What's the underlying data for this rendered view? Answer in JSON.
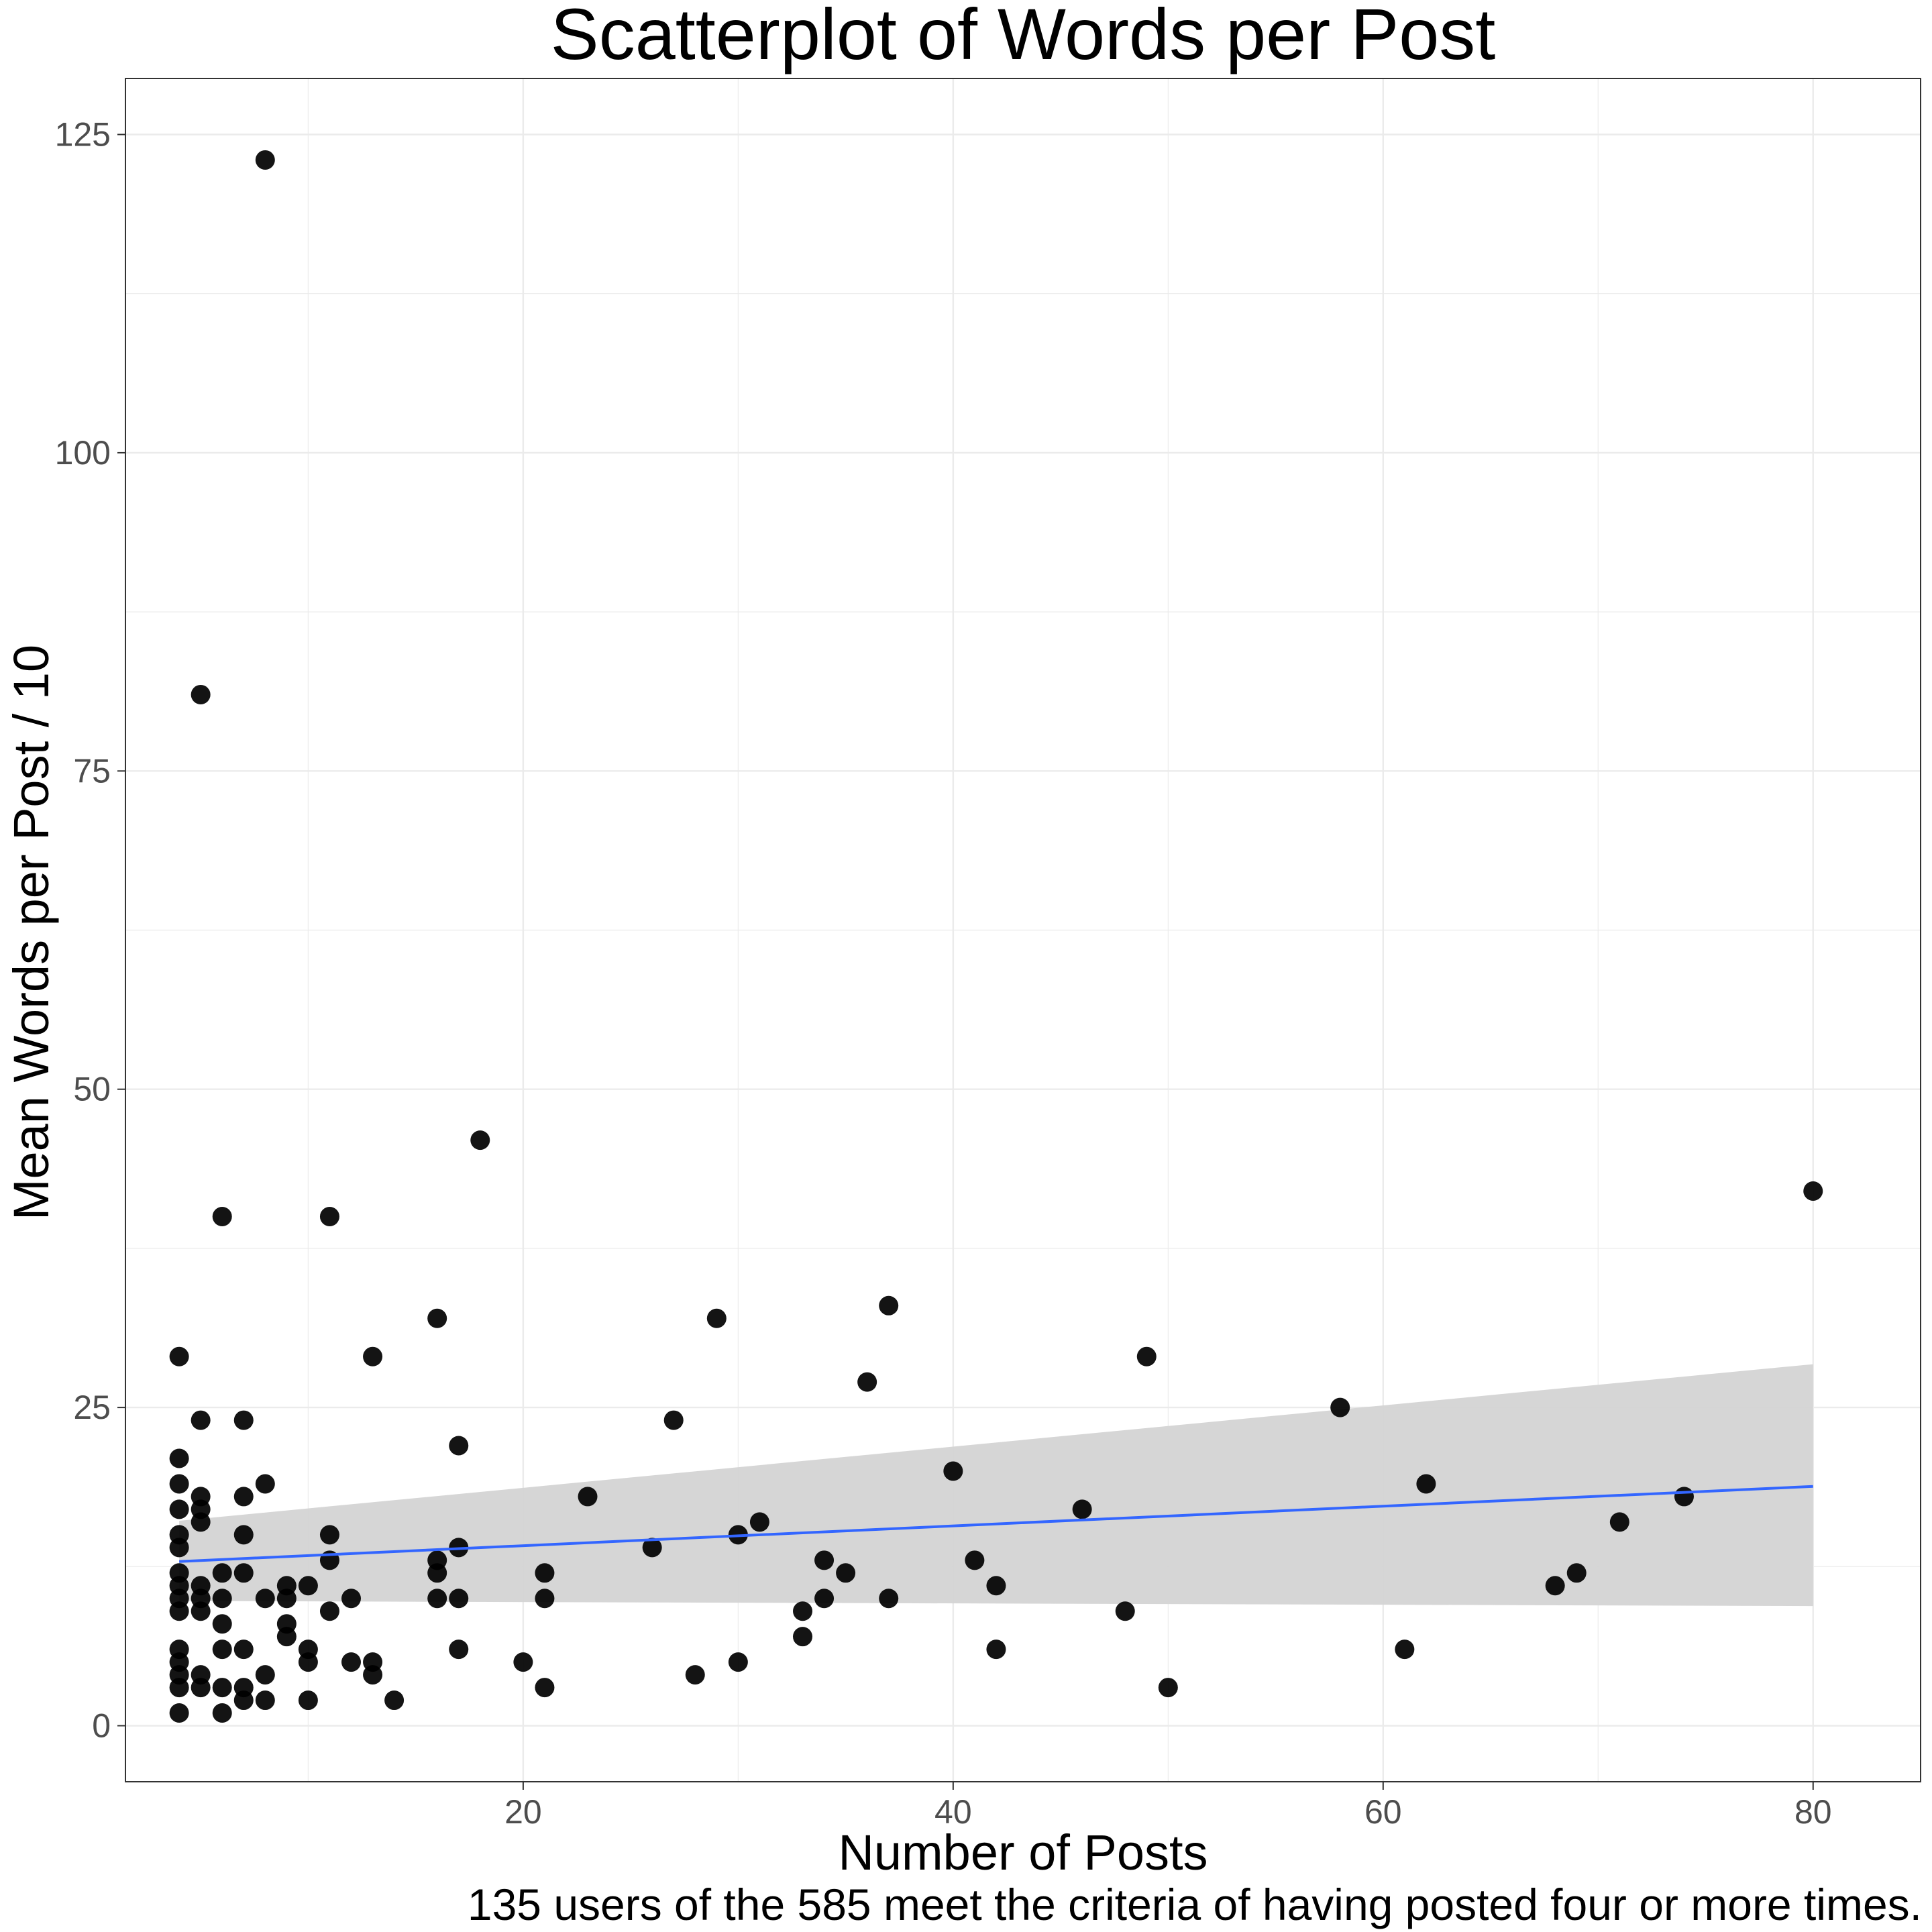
{
  "chart_data": {
    "type": "scatter",
    "title": "Scatterplot of Words per Post",
    "xlabel": "Number of Posts",
    "ylabel": "Mean Words per Post / 10",
    "caption": "135 users of the 585 meet the criteria of having posted four or more times.",
    "xlim": [
      1.5,
      85
    ],
    "ylim": [
      -4.4,
      129.4
    ],
    "xticks": [
      20,
      40,
      60,
      80
    ],
    "yticks": [
      0,
      25,
      50,
      75,
      100,
      125
    ],
    "grid": true,
    "legend": "none",
    "colors": {
      "points": "#000000",
      "trend_line": "#3366FF",
      "confidence_band": "#D4D4D4",
      "grid": "#EBEBEB",
      "panel_border": "#333333"
    },
    "points": [
      [
        4,
        1
      ],
      [
        4,
        3
      ],
      [
        4,
        4
      ],
      [
        4,
        5
      ],
      [
        4,
        6
      ],
      [
        4,
        9
      ],
      [
        4,
        10
      ],
      [
        4,
        11
      ],
      [
        4,
        12
      ],
      [
        4,
        14
      ],
      [
        4,
        15
      ],
      [
        4,
        17
      ],
      [
        4,
        19
      ],
      [
        4,
        21
      ],
      [
        4,
        29
      ],
      [
        5,
        3
      ],
      [
        5,
        4
      ],
      [
        5,
        9
      ],
      [
        5,
        10
      ],
      [
        5,
        11
      ],
      [
        5,
        16
      ],
      [
        5,
        17
      ],
      [
        5,
        18
      ],
      [
        5,
        24
      ],
      [
        5,
        81
      ],
      [
        6,
        1
      ],
      [
        6,
        3
      ],
      [
        6,
        6
      ],
      [
        6,
        8
      ],
      [
        6,
        10
      ],
      [
        6,
        12
      ],
      [
        6,
        40
      ],
      [
        7,
        2
      ],
      [
        7,
        3
      ],
      [
        7,
        6
      ],
      [
        7,
        12
      ],
      [
        7,
        15
      ],
      [
        7,
        18
      ],
      [
        7,
        24
      ],
      [
        8,
        2
      ],
      [
        8,
        4
      ],
      [
        8,
        10
      ],
      [
        8,
        19
      ],
      [
        8,
        123
      ],
      [
        9,
        7
      ],
      [
        9,
        8
      ],
      [
        9,
        10
      ],
      [
        9,
        11
      ],
      [
        10,
        2
      ],
      [
        10,
        5
      ],
      [
        10,
        6
      ],
      [
        10,
        11
      ],
      [
        11,
        9
      ],
      [
        11,
        13
      ],
      [
        11,
        15
      ],
      [
        11,
        40
      ],
      [
        12,
        5
      ],
      [
        12,
        10
      ],
      [
        13,
        4
      ],
      [
        13,
        5
      ],
      [
        13,
        29
      ],
      [
        14,
        2
      ],
      [
        16,
        10
      ],
      [
        16,
        12
      ],
      [
        16,
        13
      ],
      [
        16,
        32
      ],
      [
        17,
        6
      ],
      [
        17,
        10
      ],
      [
        17,
        14
      ],
      [
        17,
        22
      ],
      [
        18,
        46
      ],
      [
        20,
        5
      ],
      [
        21,
        3
      ],
      [
        21,
        10
      ],
      [
        21,
        12
      ],
      [
        23,
        18
      ],
      [
        26,
        14
      ],
      [
        27,
        24
      ],
      [
        28,
        4
      ],
      [
        29,
        32
      ],
      [
        30,
        5
      ],
      [
        30,
        15
      ],
      [
        31,
        16
      ],
      [
        33,
        7
      ],
      [
        33,
        9
      ],
      [
        34,
        10
      ],
      [
        34,
        13
      ],
      [
        35,
        12
      ],
      [
        36,
        27
      ],
      [
        37,
        10
      ],
      [
        37,
        33
      ],
      [
        40,
        20
      ],
      [
        41,
        13
      ],
      [
        42,
        6
      ],
      [
        42,
        11
      ],
      [
        46,
        17
      ],
      [
        48,
        9
      ],
      [
        49,
        29
      ],
      [
        50,
        3
      ],
      [
        58,
        25
      ],
      [
        61,
        6
      ],
      [
        62,
        19
      ],
      [
        68,
        11
      ],
      [
        69,
        12
      ],
      [
        71,
        16
      ],
      [
        74,
        18
      ],
      [
        80,
        42
      ]
    ],
    "trend": {
      "method": "linear",
      "x": [
        4,
        80
      ],
      "y": [
        12.9,
        18.8
      ],
      "band_lower": [
        9.8,
        9.4
      ],
      "band_upper": [
        16.1,
        28.4
      ]
    }
  }
}
